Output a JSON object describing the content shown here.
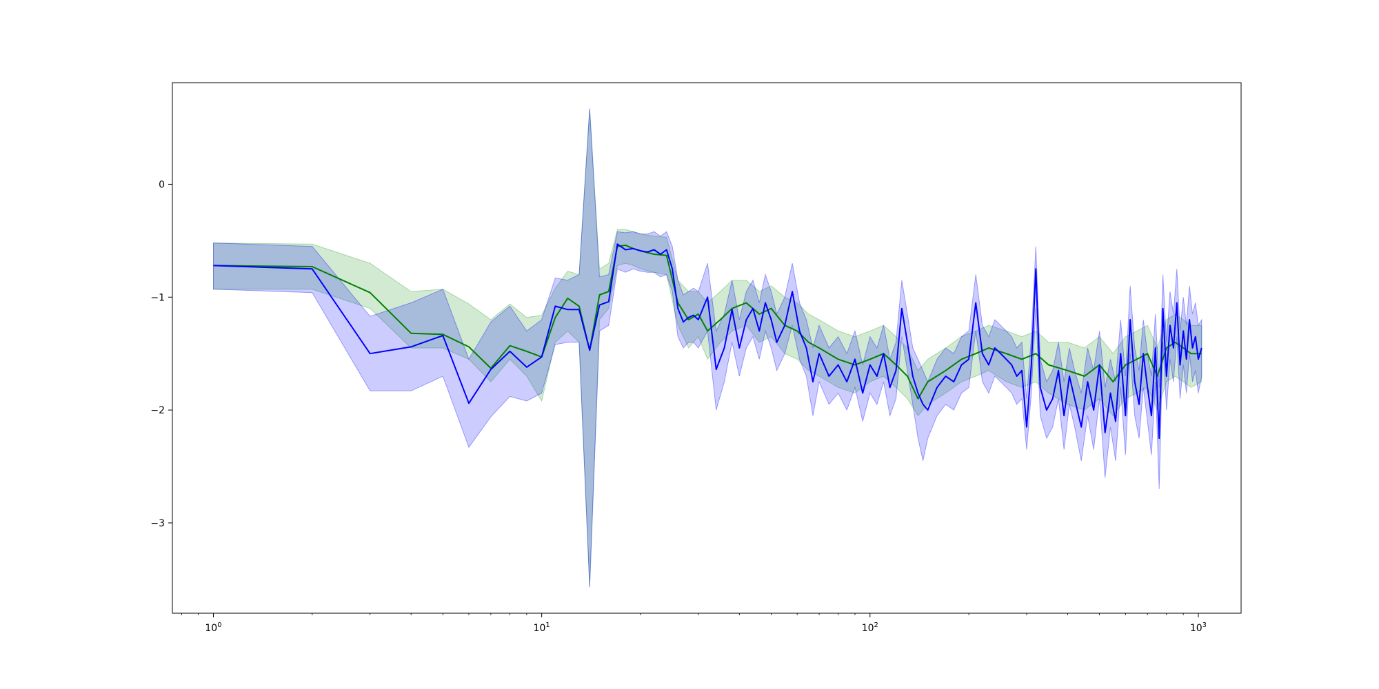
{
  "chart_data": {
    "type": "line",
    "title": "",
    "xlabel": "",
    "ylabel": "",
    "xscale": "log",
    "xlim": [
      0.75,
      1350
    ],
    "ylim": [
      -3.8,
      0.9
    ],
    "grid": false,
    "legend": "none",
    "x_ticks": [
      {
        "value": 1,
        "base": "10",
        "exp": "0"
      },
      {
        "value": 10,
        "base": "10",
        "exp": "1"
      },
      {
        "value": 100,
        "base": "10",
        "exp": "2"
      },
      {
        "value": 1000,
        "base": "10",
        "exp": "3"
      }
    ],
    "y_ticks": [
      {
        "value": 0,
        "label": "0"
      },
      {
        "value": -1,
        "label": "−1"
      },
      {
        "value": -2,
        "label": "−2"
      },
      {
        "value": -3,
        "label": "−3"
      }
    ],
    "series": [
      {
        "color": "#008000",
        "band_color": "#2ca02c",
        "band_opacity": 0.22,
        "x": [
          1,
          2,
          3,
          4,
          5,
          6,
          7,
          8,
          9,
          10,
          11,
          12,
          13,
          14,
          15,
          16,
          17,
          18,
          19,
          20,
          22,
          24,
          26,
          28,
          30,
          32,
          35,
          38,
          42,
          46,
          50,
          55,
          60,
          65,
          70,
          80,
          90,
          100,
          110,
          120,
          130,
          140,
          150,
          170,
          190,
          210,
          230,
          260,
          290,
          320,
          350,
          400,
          450,
          500,
          550,
          600,
          650,
          700,
          750,
          800,
          850,
          900,
          950,
          1024
        ],
        "y": [
          -0.72,
          -0.73,
          -0.96,
          -1.32,
          -1.33,
          -1.44,
          -1.63,
          -1.43,
          -1.48,
          -1.53,
          -1.18,
          -1.01,
          -1.08,
          -1.47,
          -0.98,
          -0.95,
          -0.55,
          -0.54,
          -0.57,
          -0.59,
          -0.62,
          -0.63,
          -1.05,
          -1.2,
          -1.15,
          -1.3,
          -1.2,
          -1.1,
          -1.05,
          -1.15,
          -1.1,
          -1.25,
          -1.3,
          -1.4,
          -1.45,
          -1.55,
          -1.6,
          -1.55,
          -1.5,
          -1.6,
          -1.7,
          -1.9,
          -1.75,
          -1.65,
          -1.55,
          -1.5,
          -1.45,
          -1.5,
          -1.55,
          -1.5,
          -1.6,
          -1.65,
          -1.7,
          -1.6,
          -1.75,
          -1.6,
          -1.55,
          -1.5,
          -1.7,
          -1.45,
          -1.4,
          -1.45,
          -1.5,
          -1.5
        ],
        "lower": [
          -0.93,
          -0.93,
          -1.1,
          -1.45,
          -1.45,
          -1.55,
          -1.75,
          -1.55,
          -1.7,
          -1.92,
          -1.4,
          -1.3,
          -1.4,
          -3.57,
          -1.2,
          -1.1,
          -0.72,
          -0.7,
          -0.72,
          -0.75,
          -0.78,
          -0.8,
          -1.25,
          -1.45,
          -1.35,
          -1.55,
          -1.4,
          -1.3,
          -1.25,
          -1.4,
          -1.35,
          -1.5,
          -1.55,
          -1.65,
          -1.7,
          -1.8,
          -1.85,
          -1.75,
          -1.7,
          -1.8,
          -1.9,
          -2.05,
          -1.95,
          -1.85,
          -1.75,
          -1.7,
          -1.65,
          -1.75,
          -1.8,
          -1.75,
          -1.85,
          -1.95,
          -2.0,
          -1.9,
          -2.05,
          -1.9,
          -1.85,
          -1.8,
          -2.0,
          -1.75,
          -1.7,
          -1.75,
          -1.8,
          -1.75
        ],
        "upper": [
          -0.52,
          -0.53,
          -0.7,
          -0.95,
          -0.93,
          -1.06,
          -1.2,
          -1.06,
          -1.18,
          -1.16,
          -0.92,
          -0.77,
          -0.8,
          0.67,
          -0.75,
          -0.7,
          -0.4,
          -0.4,
          -0.42,
          -0.44,
          -0.46,
          -0.47,
          -0.85,
          -0.95,
          -0.95,
          -1.05,
          -0.95,
          -0.85,
          -0.85,
          -0.95,
          -0.9,
          -1.0,
          -1.05,
          -1.15,
          -1.2,
          -1.3,
          -1.35,
          -1.3,
          -1.25,
          -1.35,
          -1.45,
          -1.65,
          -1.55,
          -1.45,
          -1.35,
          -1.3,
          -1.25,
          -1.3,
          -1.35,
          -1.3,
          -1.4,
          -1.4,
          -1.45,
          -1.35,
          -1.5,
          -1.35,
          -1.3,
          -1.25,
          -1.45,
          -1.2,
          -1.15,
          -1.2,
          -1.25,
          -1.25
        ]
      },
      {
        "color": "#0000ff",
        "band_color": "#0000ff",
        "band_opacity": 0.2,
        "x": [
          1,
          2,
          3,
          4,
          5,
          6,
          7,
          8,
          9,
          10,
          11,
          12,
          13,
          14,
          15,
          16,
          17,
          18,
          19,
          20,
          21,
          22,
          23,
          24,
          25,
          26,
          27,
          28,
          29,
          30,
          32,
          34,
          36,
          38,
          40,
          42,
          44,
          46,
          48,
          50,
          52,
          55,
          58,
          61,
          64,
          67,
          70,
          75,
          80,
          85,
          90,
          95,
          100,
          105,
          110,
          115,
          120,
          125,
          130,
          135,
          140,
          145,
          150,
          160,
          170,
          180,
          190,
          200,
          210,
          220,
          230,
          240,
          250,
          260,
          270,
          280,
          290,
          300,
          310,
          320,
          330,
          345,
          360,
          375,
          390,
          405,
          420,
          440,
          460,
          480,
          500,
          520,
          540,
          560,
          580,
          600,
          620,
          640,
          660,
          680,
          700,
          720,
          740,
          760,
          780,
          800,
          820,
          840,
          860,
          880,
          900,
          920,
          940,
          960,
          980,
          1000,
          1024
        ],
        "y": [
          -0.72,
          -0.75,
          -1.5,
          -1.44,
          -1.34,
          -1.94,
          -1.64,
          -1.48,
          -1.62,
          -1.53,
          -1.08,
          -1.11,
          -1.11,
          -1.47,
          -1.07,
          -1.04,
          -0.53,
          -0.58,
          -0.57,
          -0.59,
          -0.6,
          -0.58,
          -0.62,
          -0.58,
          -0.75,
          -1.1,
          -1.22,
          -1.18,
          -1.16,
          -1.2,
          -1.0,
          -1.64,
          -1.45,
          -1.11,
          -1.45,
          -1.2,
          -1.1,
          -1.3,
          -1.05,
          -1.2,
          -1.4,
          -1.25,
          -0.95,
          -1.3,
          -1.45,
          -1.75,
          -1.5,
          -1.7,
          -1.6,
          -1.75,
          -1.55,
          -1.85,
          -1.6,
          -1.7,
          -1.5,
          -1.8,
          -1.65,
          -1.1,
          -1.4,
          -1.7,
          -1.85,
          -1.95,
          -2.0,
          -1.8,
          -1.7,
          -1.75,
          -1.6,
          -1.55,
          -1.05,
          -1.5,
          -1.6,
          -1.45,
          -1.5,
          -1.55,
          -1.6,
          -1.7,
          -1.65,
          -2.15,
          -1.6,
          -0.75,
          -1.8,
          -2.0,
          -1.9,
          -1.65,
          -2.05,
          -1.7,
          -1.9,
          -2.15,
          -1.75,
          -2.0,
          -1.6,
          -2.2,
          -1.85,
          -2.1,
          -1.5,
          -2.05,
          -1.2,
          -1.75,
          -1.95,
          -1.5,
          -1.8,
          -2.05,
          -1.45,
          -2.25,
          -1.1,
          -1.7,
          -1.25,
          -1.45,
          -1.05,
          -1.6,
          -1.3,
          -1.55,
          -1.2,
          -1.45,
          -1.35,
          -1.55,
          -1.45
        ],
        "lower": [
          -0.93,
          -0.96,
          -1.83,
          -1.83,
          -1.7,
          -2.33,
          -2.06,
          -1.88,
          -1.92,
          -1.85,
          -1.42,
          -1.4,
          -1.4,
          -3.57,
          -1.3,
          -1.25,
          -0.75,
          -0.78,
          -0.75,
          -0.77,
          -0.78,
          -0.78,
          -0.82,
          -0.8,
          -0.95,
          -1.35,
          -1.45,
          -1.4,
          -1.4,
          -1.45,
          -1.3,
          -2.0,
          -1.75,
          -1.4,
          -1.7,
          -1.45,
          -1.35,
          -1.55,
          -1.3,
          -1.45,
          -1.65,
          -1.5,
          -1.25,
          -1.55,
          -1.7,
          -2.05,
          -1.75,
          -1.95,
          -1.85,
          -2.0,
          -1.8,
          -2.1,
          -1.85,
          -1.95,
          -1.75,
          -2.05,
          -1.9,
          -1.35,
          -1.65,
          -1.95,
          -2.25,
          -2.45,
          -2.25,
          -2.05,
          -1.95,
          -2.0,
          -1.85,
          -1.8,
          -1.3,
          -1.75,
          -1.85,
          -1.7,
          -1.75,
          -1.8,
          -1.85,
          -1.95,
          -1.9,
          -2.35,
          -1.85,
          -1.1,
          -2.05,
          -2.25,
          -2.15,
          -1.9,
          -2.35,
          -1.95,
          -2.15,
          -2.45,
          -2.05,
          -2.35,
          -1.9,
          -2.6,
          -2.15,
          -2.45,
          -1.8,
          -2.4,
          -1.5,
          -2.05,
          -2.25,
          -1.8,
          -2.1,
          -2.4,
          -1.75,
          -2.7,
          -1.4,
          -2.0,
          -1.55,
          -1.75,
          -1.35,
          -1.9,
          -1.6,
          -1.85,
          -1.5,
          -1.75,
          -1.65,
          -1.85,
          -1.7
        ],
        "upper": [
          -0.52,
          -0.55,
          -1.17,
          -1.05,
          -0.93,
          -1.55,
          -1.22,
          -1.08,
          -1.3,
          -1.2,
          -0.83,
          -0.85,
          -0.8,
          0.67,
          -0.82,
          -0.8,
          -0.42,
          -0.43,
          -0.42,
          -0.44,
          -0.44,
          -0.42,
          -0.46,
          -0.42,
          -0.55,
          -0.85,
          -0.98,
          -0.95,
          -0.92,
          -0.95,
          -0.7,
          -1.3,
          -1.15,
          -0.85,
          -1.2,
          -0.95,
          -0.85,
          -1.05,
          -0.8,
          -0.95,
          -1.15,
          -1.0,
          -0.7,
          -1.05,
          -1.2,
          -1.45,
          -1.25,
          -1.45,
          -1.35,
          -1.5,
          -1.3,
          -1.6,
          -1.35,
          -1.45,
          -1.25,
          -1.55,
          -1.4,
          -0.85,
          -1.15,
          -1.45,
          -1.55,
          -1.65,
          -1.75,
          -1.55,
          -1.45,
          -1.5,
          -1.35,
          -1.3,
          -0.8,
          -1.25,
          -1.35,
          -1.2,
          -1.25,
          -1.3,
          -1.35,
          -1.45,
          -1.4,
          -1.9,
          -1.35,
          -0.55,
          -1.55,
          -1.75,
          -1.65,
          -1.4,
          -1.75,
          -1.45,
          -1.65,
          -1.85,
          -1.45,
          -1.65,
          -1.3,
          -1.8,
          -1.55,
          -1.75,
          -1.2,
          -1.7,
          -0.9,
          -1.45,
          -1.65,
          -1.2,
          -1.5,
          -1.7,
          -1.15,
          -1.8,
          -0.8,
          -1.4,
          -0.95,
          -1.15,
          -0.75,
          -1.3,
          -1.0,
          -1.25,
          -0.9,
          -1.15,
          -1.05,
          -1.25,
          -1.2
        ]
      }
    ]
  }
}
